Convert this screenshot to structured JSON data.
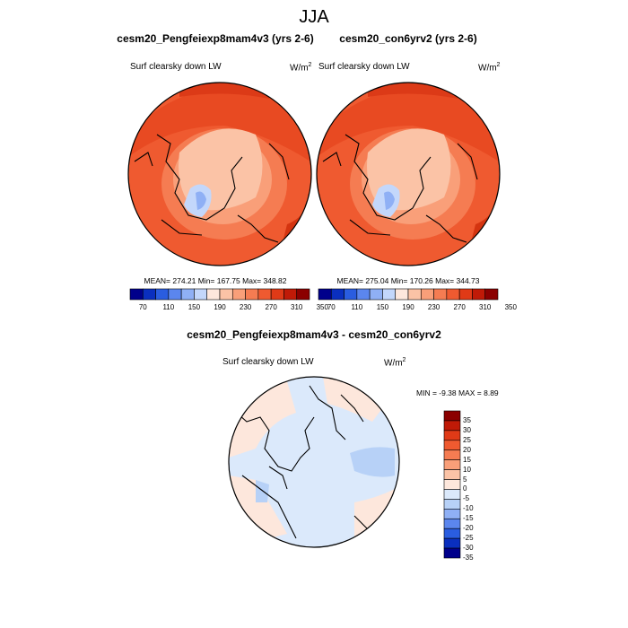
{
  "title": "JJA",
  "left_panel": {
    "title": "cesm20_Pengfeiexp8mam4v3 (yrs 2-6)",
    "variable": "Surf clearsky down LW",
    "units_base": "W/m",
    "units_exp": "2",
    "stats": "MEAN= 274.21  Min= 167.75  Max= 348.82"
  },
  "right_panel": {
    "title": "cesm20_con6yrv2 (yrs 2-6)",
    "variable": "Surf clearsky down LW",
    "units_base": "W/m",
    "units_exp": "2",
    "stats": "MEAN= 275.04  Min= 170.26  Max= 344.73"
  },
  "diff_panel": {
    "title": "cesm20_Pengfeiexp8mam4v3 - cesm20_con6yrv2",
    "variable": "Surf clearsky down LW",
    "units_base": "W/m",
    "units_exp": "2",
    "stats": "MIN =  -9.38 MAX =   8.89"
  },
  "abs_colorbar": {
    "colors": [
      "#00008b",
      "#0a2fbf",
      "#2a5de0",
      "#5b86ee",
      "#8fb0f5",
      "#c3d7fb",
      "#fde7dc",
      "#fbc3a6",
      "#f99f79",
      "#f57c52",
      "#ef5a30",
      "#e03a17",
      "#c01a07",
      "#8b0000"
    ],
    "labels": [
      "70",
      "110",
      "150",
      "190",
      "230",
      "270",
      "310",
      "350"
    ]
  },
  "diff_colorbar": {
    "colors": [
      "#8b0000",
      "#c01a07",
      "#e03a17",
      "#ef5a30",
      "#f57c52",
      "#f99f79",
      "#fbc3a6",
      "#fde7dc",
      "#dbe9fb",
      "#b7d1f7",
      "#8fb0f5",
      "#5b86ee",
      "#2a5de0",
      "#0a2fbf",
      "#00008b"
    ],
    "labels": [
      "35",
      "30",
      "25",
      "20",
      "15",
      "10",
      "5",
      "0",
      "-5",
      "-10",
      "-15",
      "-20",
      "-25",
      "-30",
      "-35"
    ]
  }
}
